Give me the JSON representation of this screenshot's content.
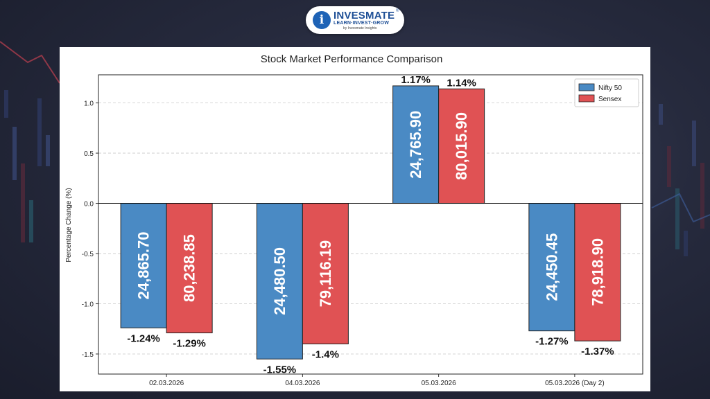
{
  "logo": {
    "mark": "i",
    "name": "INVESMATE",
    "registered": "®",
    "tagline": "LEARN·INVEST·GROW",
    "byline": "by Invesmate Insights"
  },
  "chart_data": {
    "type": "bar",
    "title": "Stock Market Performance Comparison",
    "xlabel": "",
    "ylabel": "Percentage Change (%)",
    "ylim": [
      -1.7,
      1.28
    ],
    "yticks": [
      1.0,
      0.5,
      0.0,
      -0.5,
      -1.0,
      -1.5
    ],
    "ytick_labels": [
      "1.0",
      "0.5",
      "0.0",
      "-0.5",
      "-1.0",
      "-1.5"
    ],
    "grid": true,
    "legend_position": "top-right",
    "categories": [
      "02.03.2026",
      "04.03.2026",
      "05.03.2026",
      "05.03.2026 (Day 2)"
    ],
    "series": [
      {
        "name": "Nifty 50",
        "color": "#4a8ac4",
        "values": [
          -1.24,
          -1.55,
          1.17,
          -1.27
        ],
        "value_labels": [
          "-1.24%",
          "-1.55%",
          "1.17%",
          "-1.27%"
        ],
        "index_levels": [
          "24,865.70",
          "24,480.50",
          "24,765.90",
          "24,450.45"
        ]
      },
      {
        "name": "Sensex",
        "color": "#e05254",
        "values": [
          -1.29,
          -1.4,
          1.14,
          -1.37
        ],
        "value_labels": [
          "-1.29%",
          "-1.4%",
          "1.14%",
          "-1.37%"
        ],
        "index_levels": [
          "80,238.85",
          "79,116.19",
          "80,015.90",
          "78,918.90"
        ]
      }
    ]
  }
}
